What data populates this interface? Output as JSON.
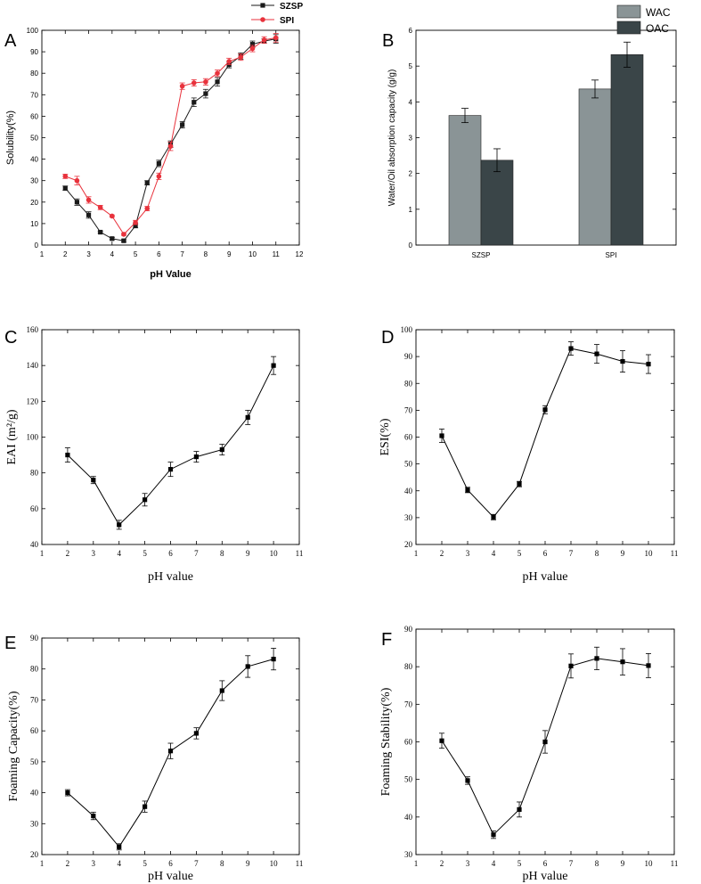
{
  "chart_data": [
    {
      "panel": "A",
      "type": "line",
      "xlabel": "pH Value",
      "ylabel": "Solubility(%)",
      "xlim": [
        1,
        12
      ],
      "ylim": [
        0,
        100
      ],
      "xticks": [
        1,
        2,
        3,
        4,
        5,
        6,
        7,
        8,
        9,
        10,
        11,
        12
      ],
      "yticks": [
        0,
        10,
        20,
        30,
        40,
        50,
        60,
        70,
        80,
        90,
        100
      ],
      "series": [
        {
          "name": "SZSP",
          "color": "#1a1a1a",
          "marker": "square",
          "x": [
            2,
            2.5,
            3,
            3.5,
            4,
            4.5,
            5,
            5.5,
            6,
            6.5,
            7,
            7.5,
            8,
            8.5,
            9,
            9.5,
            10,
            10.5,
            11
          ],
          "y": [
            26.5,
            20,
            14,
            6,
            3,
            2,
            9,
            29,
            38,
            47,
            56,
            66.5,
            70.5,
            76,
            84,
            88,
            93.5,
            95,
            96
          ],
          "err": [
            1,
            1.5,
            1.5,
            0.5,
            0.5,
            0.5,
            1,
            1,
            1.5,
            1.5,
            1.5,
            2,
            2,
            2,
            1.5,
            1.5,
            1.5,
            1,
            2
          ]
        },
        {
          "name": "SPI",
          "color": "#e8323c",
          "marker": "circle",
          "x": [
            2,
            2.5,
            3,
            3.5,
            4,
            4.5,
            5,
            5.5,
            6,
            6.5,
            7,
            7.5,
            8,
            8.5,
            9,
            9.5,
            10,
            10.5,
            11
          ],
          "y": [
            32,
            30,
            21,
            17.5,
            13.5,
            5,
            10.5,
            17,
            32,
            46,
            74,
            75.5,
            76,
            80,
            85.5,
            87.5,
            91.5,
            95.5,
            96.5
          ],
          "err": [
            1,
            2,
            1.5,
            1,
            0.5,
            0.5,
            1,
            1,
            1.5,
            2,
            1.5,
            1.5,
            1.5,
            1.5,
            1.5,
            1.5,
            1.5,
            1.5,
            2
          ]
        }
      ],
      "legend": "top-right"
    },
    {
      "panel": "B",
      "type": "bar",
      "xlabel": "",
      "ylabel": "Water/Oil absorption capacity (g/g)",
      "categories": [
        "SZSP",
        "SPI"
      ],
      "ylim": [
        0,
        6
      ],
      "yticks": [
        0,
        1,
        2,
        3,
        4,
        5,
        6
      ],
      "series": [
        {
          "name": "WAC",
          "color": "#8a9496",
          "values": [
            3.62,
            4.36
          ],
          "err": [
            0.2,
            0.25
          ]
        },
        {
          "name": "OAC",
          "color": "#3a4548",
          "values": [
            2.37,
            5.32
          ],
          "err": [
            0.32,
            0.35
          ]
        }
      ],
      "legend": "top-right"
    },
    {
      "panel": "C",
      "type": "line",
      "xlabel": "pH value",
      "ylabel": "EAI (m²/g)",
      "xlim": [
        1,
        11
      ],
      "ylim": [
        40,
        160
      ],
      "xticks": [
        1,
        2,
        3,
        4,
        5,
        6,
        7,
        8,
        9,
        10,
        11
      ],
      "yticks": [
        40,
        60,
        80,
        100,
        120,
        140,
        160
      ],
      "series": [
        {
          "name": "EAI",
          "color": "#000000",
          "marker": "square",
          "x": [
            2,
            3,
            4,
            5,
            6,
            7,
            8,
            9,
            10
          ],
          "y": [
            90,
            76,
            51,
            65,
            82,
            89,
            93,
            111,
            140
          ],
          "err": [
            4,
            2,
            2.5,
            3.5,
            4,
            3,
            3,
            4,
            5
          ]
        }
      ]
    },
    {
      "panel": "D",
      "type": "line",
      "xlabel": "pH value",
      "ylabel": "ESI(%)",
      "xlim": [
        1,
        11
      ],
      "ylim": [
        20,
        100
      ],
      "xticks": [
        1,
        2,
        3,
        4,
        5,
        6,
        7,
        8,
        9,
        10,
        11
      ],
      "yticks": [
        20,
        30,
        40,
        50,
        60,
        70,
        80,
        90,
        100
      ],
      "series": [
        {
          "name": "ESI",
          "color": "#000000",
          "marker": "square",
          "x": [
            2,
            3,
            4,
            5,
            6,
            7,
            8,
            9,
            10
          ],
          "y": [
            60.5,
            40.3,
            30.2,
            42.5,
            70.2,
            93,
            91,
            88.2,
            87.2
          ],
          "err": [
            2.5,
            1,
            1,
            1,
            1.5,
            2.5,
            3.5,
            4,
            3.5
          ]
        }
      ]
    },
    {
      "panel": "E",
      "type": "line",
      "xlabel": "pH value",
      "ylabel": "Foaming Capacity(%)",
      "xlim": [
        1,
        11
      ],
      "ylim": [
        20,
        90
      ],
      "xticks": [
        1,
        2,
        3,
        4,
        5,
        6,
        7,
        8,
        9,
        10,
        11
      ],
      "yticks": [
        20,
        30,
        40,
        50,
        60,
        70,
        80,
        90
      ],
      "series": [
        {
          "name": "Foaming Capacity",
          "color": "#000000",
          "marker": "square",
          "x": [
            2,
            3,
            4,
            5,
            6,
            7,
            8,
            9,
            10
          ],
          "y": [
            40,
            32.5,
            22.5,
            35.5,
            53.5,
            59.2,
            73,
            80.8,
            83.2
          ],
          "err": [
            1,
            1.2,
            1,
            1.8,
            2.5,
            1.8,
            3.2,
            3.5,
            3.5
          ]
        }
      ]
    },
    {
      "panel": "F",
      "type": "line",
      "xlabel": "pH value",
      "ylabel": "Foaming Stability(%)",
      "xlim": [
        1,
        11
      ],
      "ylim": [
        30,
        90
      ],
      "xticks": [
        1,
        2,
        3,
        4,
        5,
        6,
        7,
        8,
        9,
        10,
        11
      ],
      "yticks": [
        30,
        40,
        50,
        60,
        70,
        80,
        90
      ],
      "series": [
        {
          "name": "Foaming Stability",
          "color": "#000000",
          "marker": "square",
          "x": [
            2,
            3,
            4,
            5,
            6,
            7,
            8,
            9,
            10
          ],
          "y": [
            60.3,
            49.7,
            35.3,
            42,
            60,
            80.2,
            82.2,
            81.3,
            80.3
          ],
          "err": [
            2,
            1,
            1,
            2,
            3,
            3.2,
            3,
            3.5,
            3.2
          ]
        }
      ]
    }
  ]
}
